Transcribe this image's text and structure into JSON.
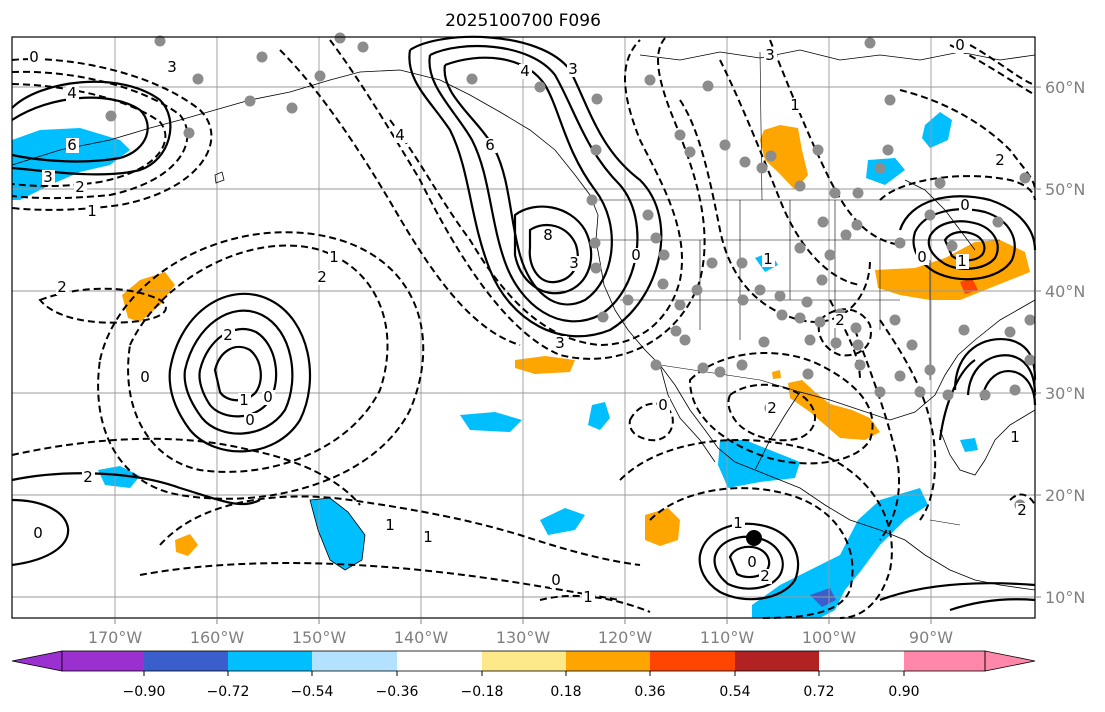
{
  "title": "2025100700 F096",
  "lon_ticks": [
    "170°W",
    "160°W",
    "150°W",
    "140°W",
    "130°W",
    "120°W",
    "110°W",
    "100°W",
    "90°W"
  ],
  "lat_ticks": [
    "60°N",
    "50°N",
    "40°N",
    "30°N",
    "20°N",
    "10°N"
  ],
  "colorbar": {
    "ticks": [
      "−0.90",
      "−0.72",
      "−0.54",
      "−0.36",
      "−0.18",
      "0.18",
      "0.36",
      "0.54",
      "0.72",
      "0.90"
    ],
    "colors": [
      "#9b30d0",
      "#00008b",
      "#3a5fcd",
      "#00bfff",
      "#b2e2ff",
      "#ffffff",
      "#fee98a",
      "#ffa500",
      "#ff4500",
      "#b22222",
      "#ff88aa"
    ]
  },
  "contour_labels": [
    "0",
    "4",
    "6",
    "3",
    "2",
    "1",
    "3",
    "4",
    "3",
    "4",
    "6",
    "8",
    "3",
    "0",
    "3",
    "2",
    "1",
    "2",
    "2",
    "1",
    "0",
    "0",
    "0",
    "2",
    "0",
    "1",
    "1",
    "0",
    "1",
    "0",
    "2",
    "1",
    "0",
    "2",
    "1",
    "2",
    "1",
    "3",
    "2",
    "0",
    "0",
    "1",
    "1",
    "2",
    "0"
  ],
  "fill_colors": {
    "neg": "#00bfff",
    "neg2": "#3a5fcd",
    "pos": "#ffa500",
    "pos2": "#ff4500"
  },
  "station_color": "#8c8c8c"
}
